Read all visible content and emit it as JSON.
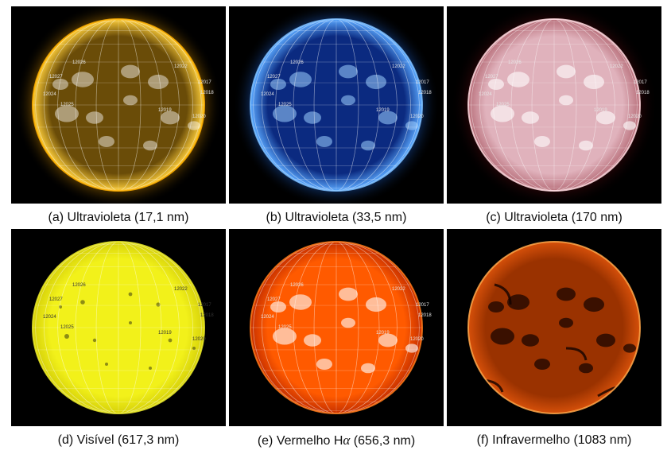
{
  "panels": [
    {
      "id": "a",
      "caption": "(a) Ultravioleta (17,1 nm)",
      "disk_colors": {
        "center": "#6a4c08",
        "edge": "#ffcf3a",
        "rim": "#ffb000",
        "glow": "#d99000"
      },
      "region_labels": [
        "12022",
        "12026",
        "12027",
        "12017",
        "12018",
        "12024",
        "12025",
        "12019",
        "12020"
      ]
    },
    {
      "id": "b",
      "caption": "(b) Ultravioleta (33,5 nm)",
      "disk_colors": {
        "center": "#0b2a80",
        "edge": "#5aa8ff",
        "rim": "#7ec0ff",
        "glow": "#1f66d8"
      },
      "region_labels": [
        "12022",
        "12026",
        "12027",
        "12017",
        "12018",
        "12024",
        "12025",
        "12019",
        "12020"
      ]
    },
    {
      "id": "c",
      "caption": "(c) Ultravioleta (170 nm)",
      "disk_colors": {
        "center": "#e0b2bc",
        "edge": "#b9717c",
        "rim": "#ffd9df",
        "glow": "#5a0b10"
      },
      "region_labels": [
        "12022",
        "12026",
        "12027",
        "12017",
        "12018",
        "12024",
        "12025",
        "12019",
        "12020"
      ]
    },
    {
      "id": "d",
      "caption": "(d) Visível (617,3 nm)",
      "disk_colors": {
        "center": "#f2f11a",
        "edge": "#d6d10a",
        "rim": "#eceb2a",
        "glow": "#000000"
      },
      "region_labels": [
        "12022",
        "12026",
        "12027",
        "12017",
        "12018",
        "12024",
        "12025",
        "12019",
        "12020"
      ]
    },
    {
      "id": "e",
      "caption_prefix": "(e) Vermelho H",
      "caption_symbol": "α",
      "caption_suffix": " (656,3 nm)",
      "disk_colors": {
        "center": "#ff5a00",
        "edge": "#c63000",
        "rim": "#ff7a1a",
        "glow": "#000000"
      },
      "region_labels": [
        "12022",
        "12026",
        "12027",
        "12017",
        "12018",
        "12024",
        "12025",
        "12019",
        "12020"
      ]
    },
    {
      "id": "f",
      "caption": "(f) Infravermelho (1083 nm)",
      "disk_colors": {
        "center": "#9a3200",
        "edge": "#d6500a",
        "rim": "#ffa74a",
        "glow": "#000000"
      },
      "region_labels": []
    }
  ]
}
